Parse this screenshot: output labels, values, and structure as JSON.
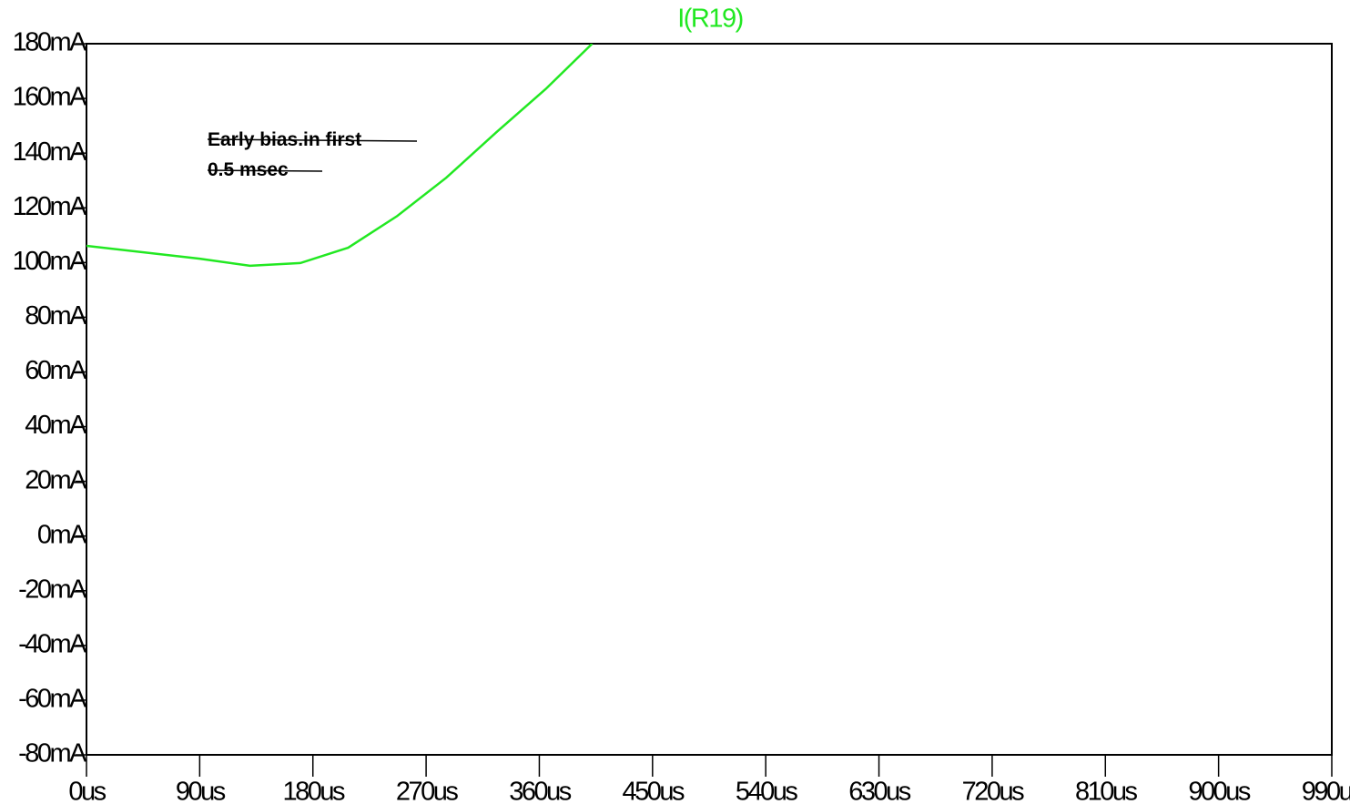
{
  "chart_data": {
    "type": "line",
    "x": [
      0,
      90,
      130,
      170,
      208,
      247,
      286,
      326,
      365,
      402
    ],
    "series": [
      {
        "name": "I(R19)",
        "color": "#22e822",
        "values": [
          106.1,
          101.4,
          98.8,
          99.8,
          105.4,
          117,
          131,
          147.7,
          163.4,
          180
        ]
      }
    ],
    "xlim": [
      0,
      990
    ],
    "xticks": [
      {
        "value": 0,
        "label": "0us"
      },
      {
        "value": 90,
        "label": "90us"
      },
      {
        "value": 180,
        "label": "180us"
      },
      {
        "value": 270,
        "label": "270us"
      },
      {
        "value": 360,
        "label": "360us"
      },
      {
        "value": 450,
        "label": "450us"
      },
      {
        "value": 540,
        "label": "540us"
      },
      {
        "value": 630,
        "label": "630us"
      },
      {
        "value": 720,
        "label": "720us"
      },
      {
        "value": 810,
        "label": "810us"
      },
      {
        "value": 900,
        "label": "900us"
      },
      {
        "value": 990,
        "label": "990us"
      }
    ],
    "ylim": [
      -80,
      180
    ],
    "yticks": [
      {
        "value": 180,
        "label": "180mA"
      },
      {
        "value": 160,
        "label": "160mA"
      },
      {
        "value": 140,
        "label": "140mA"
      },
      {
        "value": 120,
        "label": "120mA"
      },
      {
        "value": 100,
        "label": "100mA"
      },
      {
        "value": 80,
        "label": "80mA"
      },
      {
        "value": 60,
        "label": "60mA"
      },
      {
        "value": 40,
        "label": "40mA"
      },
      {
        "value": 20,
        "label": "20mA"
      },
      {
        "value": 0,
        "label": "0mA"
      },
      {
        "value": -20,
        "label": "-20mA"
      },
      {
        "value": -40,
        "label": "-40mA"
      },
      {
        "value": -60,
        "label": "-60mA"
      },
      {
        "value": -80,
        "label": "-80mA"
      }
    ],
    "annotations": [
      "Early bias.in first",
      "0.5 msec"
    ]
  }
}
